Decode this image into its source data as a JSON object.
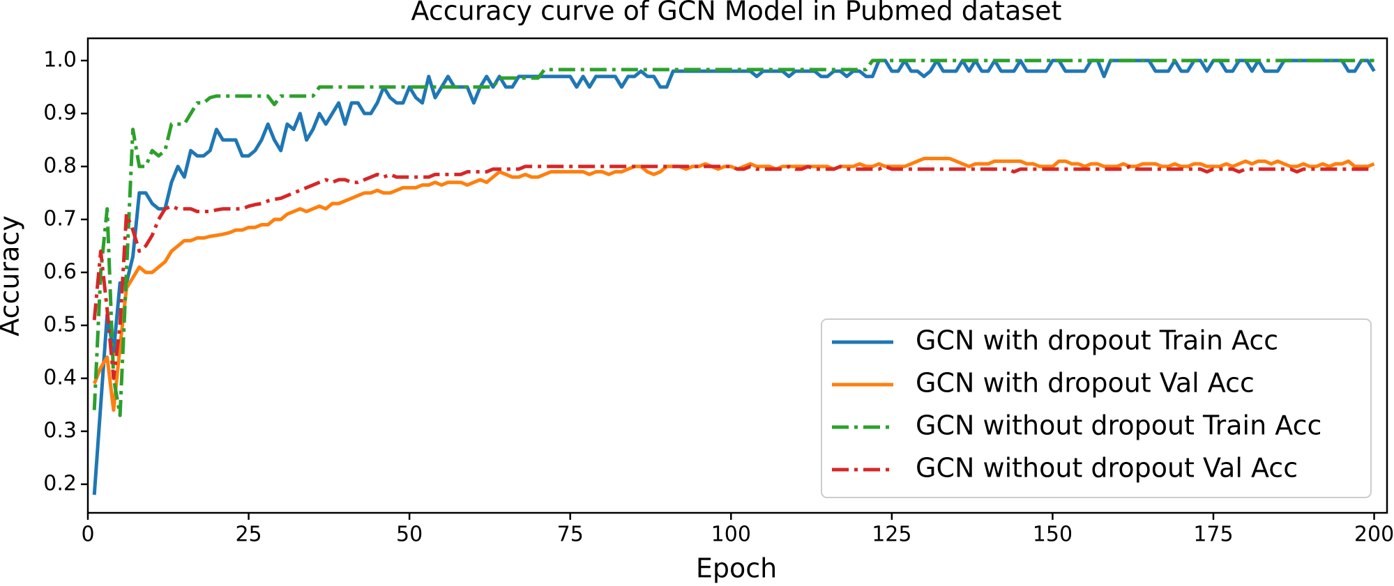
{
  "chart_data": {
    "type": "line",
    "title": "Accuracy curve of GCN Model in Pubmed dataset",
    "x_label": "Epoch",
    "y_label": "Accuracy",
    "xlim": [
      0,
      202
    ],
    "ylim": [
      0.146,
      1.042
    ],
    "xticks": [
      0,
      25,
      50,
      75,
      100,
      125,
      150,
      175,
      200
    ],
    "yticks": [
      0.2,
      0.3,
      0.4,
      0.5,
      0.6,
      0.7,
      0.8,
      0.9,
      {
        "value": 1,
        "label": "1.0"
      }
    ],
    "legend": "lower right",
    "x": [
      1,
      2,
      3,
      4,
      5,
      6,
      7,
      8,
      9,
      10,
      11,
      12,
      13,
      14,
      15,
      16,
      17,
      18,
      19,
      20,
      21,
      22,
      23,
      24,
      25,
      26,
      27,
      28,
      29,
      30,
      31,
      32,
      33,
      34,
      35,
      36,
      37,
      38,
      39,
      40,
      41,
      42,
      43,
      44,
      45,
      46,
      47,
      48,
      49,
      50,
      51,
      52,
      53,
      54,
      55,
      56,
      57,
      58,
      59,
      60,
      61,
      62,
      63,
      64,
      65,
      66,
      67,
      68,
      69,
      70,
      71,
      72,
      73,
      74,
      75,
      76,
      77,
      78,
      79,
      80,
      81,
      82,
      83,
      84,
      85,
      86,
      87,
      88,
      89,
      90,
      91,
      92,
      93,
      94,
      95,
      96,
      97,
      98,
      99,
      100,
      101,
      102,
      103,
      104,
      105,
      106,
      107,
      108,
      109,
      110,
      111,
      112,
      113,
      114,
      115,
      116,
      117,
      118,
      119,
      120,
      121,
      122,
      123,
      124,
      125,
      126,
      127,
      128,
      129,
      130,
      131,
      132,
      133,
      134,
      135,
      136,
      137,
      138,
      139,
      140,
      141,
      142,
      143,
      144,
      145,
      146,
      147,
      148,
      149,
      150,
      151,
      152,
      153,
      154,
      155,
      156,
      157,
      158,
      159,
      160,
      161,
      162,
      163,
      164,
      165,
      166,
      167,
      168,
      169,
      170,
      171,
      172,
      173,
      174,
      175,
      176,
      177,
      178,
      179,
      180,
      181,
      182,
      183,
      184,
      185,
      186,
      187,
      188,
      189,
      190,
      191,
      192,
      193,
      194,
      195,
      196,
      197,
      198,
      199,
      200
    ],
    "series": [
      {
        "name": "GCN with dropout Train Acc",
        "color": "#1f77b4",
        "linestyle": "solid",
        "values": [
          0.18,
          0.35,
          0.52,
          0.45,
          0.58,
          0.58,
          0.63,
          0.75,
          0.75,
          0.73,
          0.72,
          0.72,
          0.77,
          0.8,
          0.78,
          0.83,
          0.82,
          0.82,
          0.83,
          0.87,
          0.85,
          0.85,
          0.85,
          0.82,
          0.82,
          0.83,
          0.85,
          0.88,
          0.85,
          0.83,
          0.88,
          0.87,
          0.9,
          0.85,
          0.87,
          0.9,
          0.88,
          0.9,
          0.92,
          0.88,
          0.92,
          0.92,
          0.9,
          0.9,
          0.92,
          0.95,
          0.93,
          0.92,
          0.92,
          0.95,
          0.93,
          0.92,
          0.97,
          0.93,
          0.95,
          0.97,
          0.95,
          0.95,
          0.95,
          0.92,
          0.95,
          0.97,
          0.95,
          0.97,
          0.95,
          0.95,
          0.97,
          0.97,
          0.97,
          0.97,
          0.97,
          0.97,
          0.97,
          0.97,
          0.97,
          0.95,
          0.97,
          0.95,
          0.97,
          0.97,
          0.97,
          0.97,
          0.95,
          0.97,
          0.97,
          0.98,
          0.97,
          0.97,
          0.95,
          0.95,
          0.98,
          0.98,
          0.98,
          0.98,
          0.98,
          0.98,
          0.98,
          0.98,
          0.98,
          0.98,
          0.98,
          0.98,
          0.98,
          0.97,
          0.98,
          0.98,
          0.98,
          0.98,
          0.97,
          0.98,
          0.98,
          0.98,
          0.98,
          0.97,
          0.97,
          0.98,
          0.98,
          0.97,
          0.98,
          0.98,
          0.97,
          0.97,
          1.0,
          1.0,
          0.98,
          0.98,
          1.0,
          0.98,
          0.98,
          0.97,
          0.98,
          1.0,
          0.98,
          0.98,
          0.98,
          1.0,
          0.98,
          1.0,
          0.98,
          0.98,
          1.0,
          0.98,
          0.98,
          0.98,
          1.0,
          0.98,
          0.98,
          0.98,
          0.98,
          1.0,
          1.0,
          0.98,
          0.98,
          0.98,
          0.98,
          1.0,
          1.0,
          0.97,
          1.0,
          1.0,
          1.0,
          1.0,
          1.0,
          1.0,
          1.0,
          0.98,
          0.98,
          0.98,
          1.0,
          0.98,
          0.98,
          1.0,
          1.0,
          0.98,
          1.0,
          1.0,
          0.98,
          0.98,
          1.0,
          1.0,
          0.98,
          1.0,
          0.98,
          0.98,
          0.98,
          1.0,
          1.0,
          1.0,
          1.0,
          1.0,
          1.0,
          1.0,
          1.0,
          1.0,
          1.0,
          0.98,
          0.98,
          1.0,
          1.0,
          0.98
        ]
      },
      {
        "name": "GCN with dropout Val Acc",
        "color": "#ff7f0e",
        "linestyle": "solid",
        "values": [
          0.39,
          0.42,
          0.44,
          0.34,
          0.46,
          0.57,
          0.59,
          0.61,
          0.6,
          0.6,
          0.61,
          0.62,
          0.64,
          0.65,
          0.66,
          0.66,
          0.665,
          0.665,
          0.668,
          0.67,
          0.672,
          0.675,
          0.68,
          0.68,
          0.685,
          0.685,
          0.69,
          0.69,
          0.7,
          0.7,
          0.71,
          0.715,
          0.72,
          0.715,
          0.72,
          0.725,
          0.72,
          0.73,
          0.73,
          0.735,
          0.74,
          0.745,
          0.75,
          0.75,
          0.755,
          0.75,
          0.75,
          0.755,
          0.76,
          0.76,
          0.76,
          0.765,
          0.765,
          0.77,
          0.765,
          0.77,
          0.77,
          0.77,
          0.765,
          0.77,
          0.775,
          0.77,
          0.78,
          0.79,
          0.785,
          0.78,
          0.78,
          0.785,
          0.78,
          0.78,
          0.785,
          0.79,
          0.79,
          0.79,
          0.79,
          0.79,
          0.79,
          0.785,
          0.79,
          0.79,
          0.785,
          0.79,
          0.79,
          0.795,
          0.8,
          0.8,
          0.79,
          0.785,
          0.79,
          0.8,
          0.8,
          0.8,
          0.795,
          0.8,
          0.8,
          0.805,
          0.8,
          0.795,
          0.8,
          0.8,
          0.795,
          0.8,
          0.805,
          0.8,
          0.8,
          0.8,
          0.795,
          0.8,
          0.8,
          0.8,
          0.8,
          0.8,
          0.8,
          0.8,
          0.8,
          0.795,
          0.8,
          0.8,
          0.8,
          0.805,
          0.8,
          0.8,
          0.805,
          0.8,
          0.8,
          0.8,
          0.8,
          0.805,
          0.81,
          0.815,
          0.815,
          0.815,
          0.815,
          0.815,
          0.81,
          0.805,
          0.8,
          0.805,
          0.805,
          0.805,
          0.81,
          0.81,
          0.81,
          0.81,
          0.81,
          0.805,
          0.805,
          0.8,
          0.8,
          0.8,
          0.81,
          0.81,
          0.805,
          0.805,
          0.8,
          0.805,
          0.805,
          0.8,
          0.8,
          0.8,
          0.805,
          0.8,
          0.8,
          0.805,
          0.805,
          0.805,
          0.8,
          0.8,
          0.805,
          0.8,
          0.8,
          0.805,
          0.805,
          0.8,
          0.8,
          0.8,
          0.805,
          0.8,
          0.805,
          0.81,
          0.805,
          0.81,
          0.81,
          0.805,
          0.81,
          0.805,
          0.8,
          0.8,
          0.805,
          0.8,
          0.8,
          0.805,
          0.8,
          0.805,
          0.805,
          0.81,
          0.8,
          0.8,
          0.8,
          0.805
        ]
      },
      {
        "name": "GCN without dropout Train Acc",
        "color": "#2ca02c",
        "linestyle": "dashdot",
        "values": [
          0.34,
          0.6,
          0.72,
          0.4,
          0.33,
          0.6,
          0.87,
          0.8,
          0.8,
          0.83,
          0.82,
          0.83,
          0.88,
          0.88,
          0.88,
          0.9,
          0.92,
          0.92,
          0.93,
          0.933,
          0.933,
          0.933,
          0.933,
          0.933,
          0.933,
          0.933,
          0.933,
          0.933,
          0.917,
          0.933,
          0.933,
          0.933,
          0.933,
          0.933,
          0.933,
          0.95,
          0.95,
          0.95,
          0.95,
          0.95,
          0.95,
          0.95,
          0.95,
          0.95,
          0.95,
          0.95,
          0.95,
          0.95,
          0.95,
          0.95,
          0.95,
          0.95,
          0.95,
          0.95,
          0.95,
          0.95,
          0.95,
          0.95,
          0.95,
          0.95,
          0.95,
          0.95,
          0.95,
          0.967,
          0.967,
          0.967,
          0.967,
          0.967,
          0.967,
          0.967,
          0.983,
          0.983,
          0.983,
          0.983,
          0.983,
          0.983,
          0.983,
          0.983,
          0.983,
          0.983,
          0.983,
          0.983,
          0.983,
          0.983,
          0.983,
          0.983,
          0.983,
          0.983,
          0.983,
          0.983,
          0.983,
          0.983,
          0.983,
          0.983,
          0.983,
          0.983,
          0.983,
          0.983,
          0.983,
          0.983,
          0.983,
          0.983,
          0.983,
          0.983,
          0.983,
          0.983,
          0.983,
          0.983,
          0.983,
          0.983,
          0.983,
          0.983,
          0.983,
          0.983,
          0.983,
          0.983,
          0.983,
          0.983,
          0.983,
          0.983,
          0.983,
          1.0,
          1.0,
          1.0,
          1.0,
          1.0,
          1.0,
          1.0,
          1.0,
          1.0,
          1.0,
          1.0,
          1.0,
          1.0,
          1.0,
          1.0,
          1.0,
          1.0,
          1.0,
          1.0,
          1.0,
          1.0,
          1.0,
          1.0,
          1.0,
          1.0,
          1.0,
          1.0,
          1.0,
          1.0,
          1.0,
          1.0,
          1.0,
          1.0,
          1.0,
          1.0,
          1.0,
          1.0,
          1.0,
          1.0,
          1.0,
          1.0,
          1.0,
          1.0,
          1.0,
          1.0,
          1.0,
          1.0,
          1.0,
          1.0,
          1.0,
          1.0,
          1.0,
          1.0,
          1.0,
          1.0,
          1.0,
          1.0,
          1.0,
          1.0,
          1.0,
          1.0,
          1.0,
          1.0,
          1.0,
          1.0,
          1.0,
          1.0,
          1.0,
          1.0,
          1.0,
          1.0,
          1.0,
          1.0,
          1.0,
          1.0,
          1.0,
          1.0,
          1.0,
          1.0
        ]
      },
      {
        "name": "GCN without dropout Val Acc",
        "color": "#d62728",
        "linestyle": "dashdot",
        "values": [
          0.51,
          0.64,
          0.53,
          0.4,
          0.5,
          0.71,
          0.68,
          0.64,
          0.65,
          0.67,
          0.7,
          0.72,
          0.725,
          0.72,
          0.72,
          0.72,
          0.715,
          0.715,
          0.715,
          0.718,
          0.72,
          0.72,
          0.72,
          0.72,
          0.725,
          0.728,
          0.73,
          0.735,
          0.738,
          0.74,
          0.745,
          0.75,
          0.755,
          0.76,
          0.765,
          0.77,
          0.775,
          0.77,
          0.775,
          0.775,
          0.77,
          0.77,
          0.775,
          0.78,
          0.785,
          0.78,
          0.785,
          0.78,
          0.78,
          0.78,
          0.78,
          0.78,
          0.78,
          0.785,
          0.785,
          0.785,
          0.785,
          0.785,
          0.79,
          0.79,
          0.79,
          0.79,
          0.795,
          0.795,
          0.795,
          0.795,
          0.795,
          0.8,
          0.8,
          0.8,
          0.8,
          0.8,
          0.8,
          0.8,
          0.8,
          0.8,
          0.8,
          0.8,
          0.8,
          0.8,
          0.8,
          0.8,
          0.8,
          0.8,
          0.8,
          0.8,
          0.8,
          0.8,
          0.8,
          0.8,
          0.8,
          0.8,
          0.8,
          0.8,
          0.8,
          0.8,
          0.8,
          0.8,
          0.8,
          0.8,
          0.795,
          0.795,
          0.8,
          0.795,
          0.795,
          0.795,
          0.795,
          0.795,
          0.8,
          0.795,
          0.795,
          0.8,
          0.795,
          0.795,
          0.795,
          0.795,
          0.8,
          0.795,
          0.795,
          0.795,
          0.795,
          0.795,
          0.795,
          0.8,
          0.795,
          0.795,
          0.795,
          0.795,
          0.795,
          0.795,
          0.795,
          0.795,
          0.795,
          0.795,
          0.795,
          0.795,
          0.795,
          0.795,
          0.795,
          0.795,
          0.795,
          0.795,
          0.795,
          0.79,
          0.795,
          0.795,
          0.795,
          0.795,
          0.795,
          0.795,
          0.795,
          0.795,
          0.795,
          0.795,
          0.795,
          0.795,
          0.795,
          0.795,
          0.795,
          0.795,
          0.795,
          0.8,
          0.795,
          0.795,
          0.795,
          0.795,
          0.795,
          0.795,
          0.795,
          0.795,
          0.795,
          0.795,
          0.795,
          0.79,
          0.795,
          0.795,
          0.795,
          0.795,
          0.79,
          0.795,
          0.795,
          0.795,
          0.795,
          0.795,
          0.795,
          0.795,
          0.795,
          0.79,
          0.795,
          0.795,
          0.795,
          0.795,
          0.795,
          0.795,
          0.795,
          0.795,
          0.795,
          0.795,
          0.795,
          0.795
        ]
      }
    ]
  }
}
